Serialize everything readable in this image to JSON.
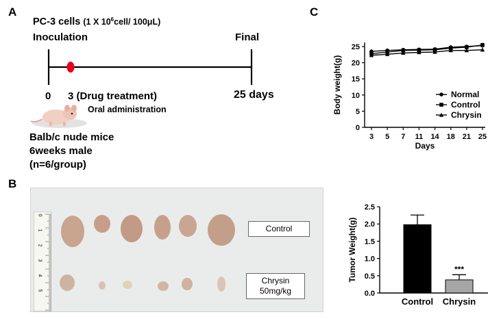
{
  "panelA": {
    "label": "A",
    "cells_text": "PC-3 cells",
    "cells_dose_pre": "(1 X 10",
    "cells_dose_sup": "6",
    "cells_dose_post": "cell/ 100",
    "cells_dose_mu": "μ",
    "cells_dose_end": "L)",
    "inoculation": "Inoculation",
    "final": "Final",
    "day0": "0",
    "day3_text": "3 (Drug treatment)",
    "day_end": "25 days",
    "oral": "Oral administration",
    "mice_line1": "Balb/c nude mice",
    "mice_line2": "6weeks male",
    "mice_line3": "(n=6/group)",
    "marker_color": "#e8001c"
  },
  "panelB": {
    "label": "B",
    "control_label": "Control",
    "chrysin_label_line1": "Chrysin",
    "chrysin_label_line2": "50mg/kg",
    "ruler_marks": [
      "0",
      "1",
      "2",
      "3",
      "4",
      "5"
    ]
  },
  "panelC": {
    "label": "C"
  },
  "chart_data": [
    {
      "type": "line",
      "ylabel": "Body weight(g)",
      "xlabel": "Days",
      "x": [
        3,
        5,
        7,
        11,
        14,
        18,
        21,
        25
      ],
      "ylim": [
        0,
        25
      ],
      "yticks": [
        0,
        5,
        10,
        15,
        20,
        25
      ],
      "legend_position": "bottom-right",
      "series": [
        {
          "name": "Normal",
          "marker": "circle",
          "values": [
            23.5,
            23.8,
            24.0,
            24.1,
            24.2,
            24.8,
            25.0,
            25.3
          ]
        },
        {
          "name": "Control",
          "marker": "square",
          "values": [
            22.8,
            23.3,
            23.8,
            23.9,
            24.0,
            24.5,
            24.8,
            25.5
          ]
        },
        {
          "name": "Chrysin",
          "marker": "triangle",
          "values": [
            22.3,
            22.6,
            23.0,
            23.2,
            23.3,
            23.8,
            23.8,
            24.0
          ]
        }
      ]
    },
    {
      "type": "bar",
      "ylabel": "Tumor Weight(g)",
      "categories": [
        "Control",
        "Chrysin"
      ],
      "values": [
        1.98,
        0.38
      ],
      "errors": [
        0.28,
        0.15
      ],
      "colors": [
        "#000000",
        "#a6a6a6"
      ],
      "ylim": [
        0,
        2.5
      ],
      "yticks": [
        "0.0",
        "0.5",
        "1.0",
        "1.5",
        "2.0",
        "2.5"
      ],
      "annotation": "***"
    }
  ]
}
